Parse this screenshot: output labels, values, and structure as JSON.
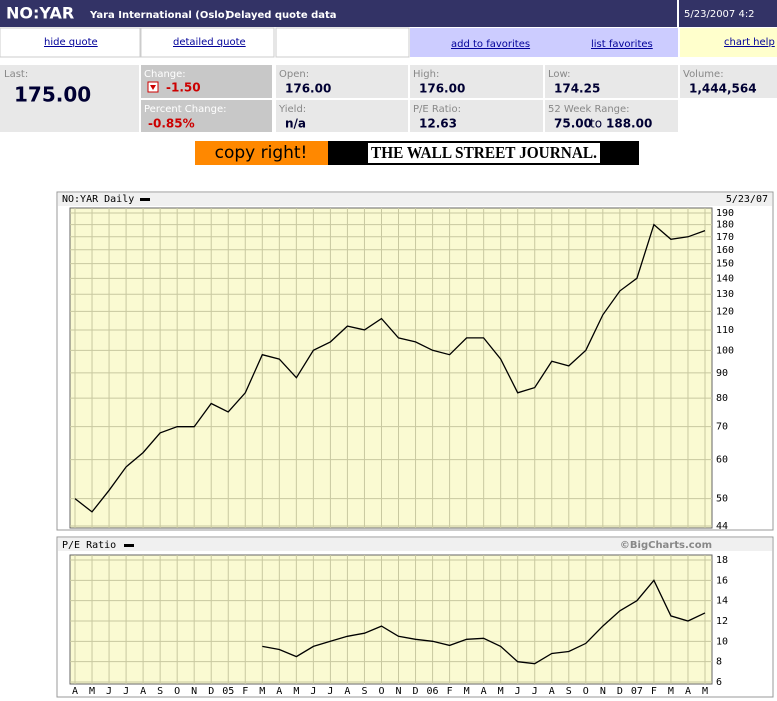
{
  "header": {
    "symbol": "NO:YAR",
    "company": "Yara International (Oslo)",
    "note": "Delayed quote data",
    "timestamp": "5/23/2007 4:2"
  },
  "links": {
    "hide_quote": "hide quote",
    "detailed_quote": "detailed quote",
    "add_favorites": "add to favorites",
    "list_favorites": "list favorites",
    "chart_help": "chart help"
  },
  "quote": {
    "last": {
      "label": "Last:",
      "value": "175.00"
    },
    "change": {
      "label": "Change:",
      "value": "-1.50"
    },
    "percent_change": {
      "label": "Percent Change:",
      "value": "-0.85%"
    },
    "open": {
      "label": "Open:",
      "value": "176.00"
    },
    "yield": {
      "label": "Yield:",
      "value": "n/a"
    },
    "high": {
      "label": "High:",
      "value": "176.00"
    },
    "pe_ratio": {
      "label": "P/E Ratio:",
      "value": "12.63"
    },
    "low": {
      "label": "Low:",
      "value": "174.25"
    },
    "range_52w": {
      "label": "52 Week Range:",
      "low": "75.00",
      "to": "to",
      "high": "188.00"
    },
    "volume": {
      "label": "Volume:",
      "value": "1,444,564"
    }
  },
  "banner": {
    "left": "copy right!",
    "right": "THE WALL STREET JOURNAL."
  },
  "price_chart": {
    "type": "line",
    "title": "NO:YAR Daily",
    "date": "5/23/07",
    "values": [
      50,
      47,
      52,
      58,
      62,
      68,
      70,
      70,
      78,
      75,
      82,
      98,
      96,
      88,
      100,
      104,
      112,
      110,
      116,
      106,
      104,
      100,
      98,
      106,
      106,
      96,
      82,
      84,
      95,
      93,
      100,
      118,
      132,
      140,
      180,
      168,
      170,
      175
    ],
    "ylim": [
      44,
      190
    ],
    "yticks": [
      190,
      180,
      170,
      160,
      150,
      140,
      130,
      120,
      110,
      100,
      90,
      80,
      70,
      60,
      50,
      44
    ],
    "log_scale": true,
    "grid": true,
    "color": "#000000"
  },
  "pe_chart": {
    "type": "line",
    "title": "P/E Ratio",
    "credit": "©BigCharts.com",
    "categories": [
      "A",
      "M",
      "J",
      "J",
      "A",
      "S",
      "O",
      "N",
      "D",
      "05",
      "F",
      "M",
      "A",
      "M",
      "J",
      "J",
      "A",
      "S",
      "O",
      "N",
      "D",
      "06",
      "F",
      "M",
      "A",
      "M",
      "J",
      "J",
      "A",
      "S",
      "O",
      "N",
      "D",
      "07",
      "F",
      "M",
      "A",
      "M"
    ],
    "values": [
      null,
      null,
      null,
      null,
      null,
      null,
      null,
      null,
      null,
      null,
      null,
      9.5,
      9.2,
      8.5,
      9.5,
      10,
      10.5,
      10.8,
      11.5,
      10.5,
      10.2,
      10,
      9.6,
      10.2,
      10.3,
      9.5,
      8,
      7.8,
      8.8,
      9,
      9.8,
      11.5,
      13,
      14,
      16,
      12.5,
      12,
      12.8
    ],
    "ylim": [
      6,
      18
    ],
    "yticks": [
      6,
      8,
      10,
      12,
      14,
      16,
      18
    ],
    "log_scale": false,
    "grid": true,
    "color": "#000000"
  }
}
